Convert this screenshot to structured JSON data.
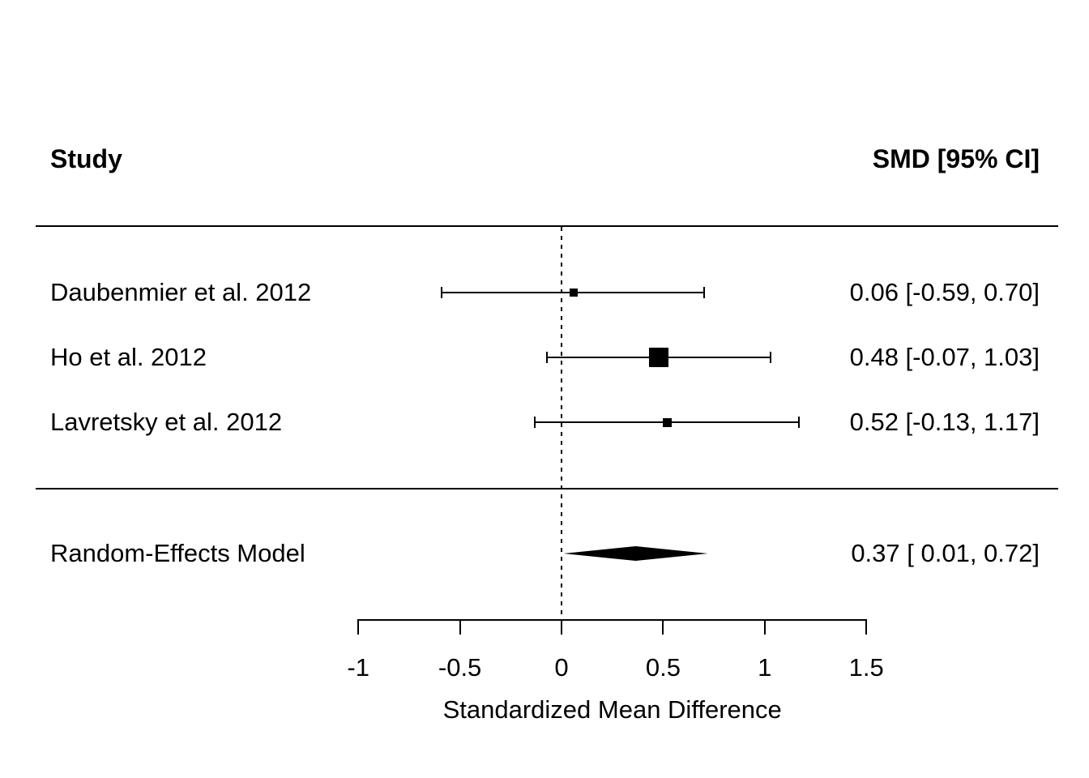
{
  "header": {
    "study_label": "Study",
    "effect_label": "SMD [95% CI]"
  },
  "colors": {
    "foreground": "#000000",
    "background": "#ffffff"
  },
  "chart_data": {
    "type": "forest",
    "title": "",
    "xlabel": "Standardized Mean Difference",
    "x_ticks": [
      -1,
      -0.5,
      0,
      0.5,
      1,
      1.5
    ],
    "x_tick_labels": [
      "-1",
      "-0.5",
      "0",
      "0.5",
      "1",
      "1.5"
    ],
    "xlim": [
      -1,
      1.5
    ],
    "reference_line": 0,
    "reference_line_style": "dotted",
    "studies": [
      {
        "label": "Daubenmier et al. 2012",
        "smd": 0.06,
        "ci_lower": -0.59,
        "ci_upper": 0.7,
        "annotation": "0.06 [-0.59, 0.70]",
        "marker_size_px": 10
      },
      {
        "label": "Ho et al. 2012",
        "smd": 0.48,
        "ci_lower": -0.07,
        "ci_upper": 1.03,
        "annotation": "0.48 [-0.07, 1.03]",
        "marker_size_px": 24
      },
      {
        "label": "Lavretsky et al. 2012",
        "smd": 0.52,
        "ci_lower": -0.13,
        "ci_upper": 1.17,
        "annotation": "0.52 [-0.13, 1.17]",
        "marker_size_px": 11
      }
    ],
    "summary": {
      "label": "Random-Effects Model",
      "smd": 0.37,
      "ci_lower": 0.01,
      "ci_upper": 0.72,
      "annotation": "0.37 [ 0.01, 0.72]"
    }
  }
}
